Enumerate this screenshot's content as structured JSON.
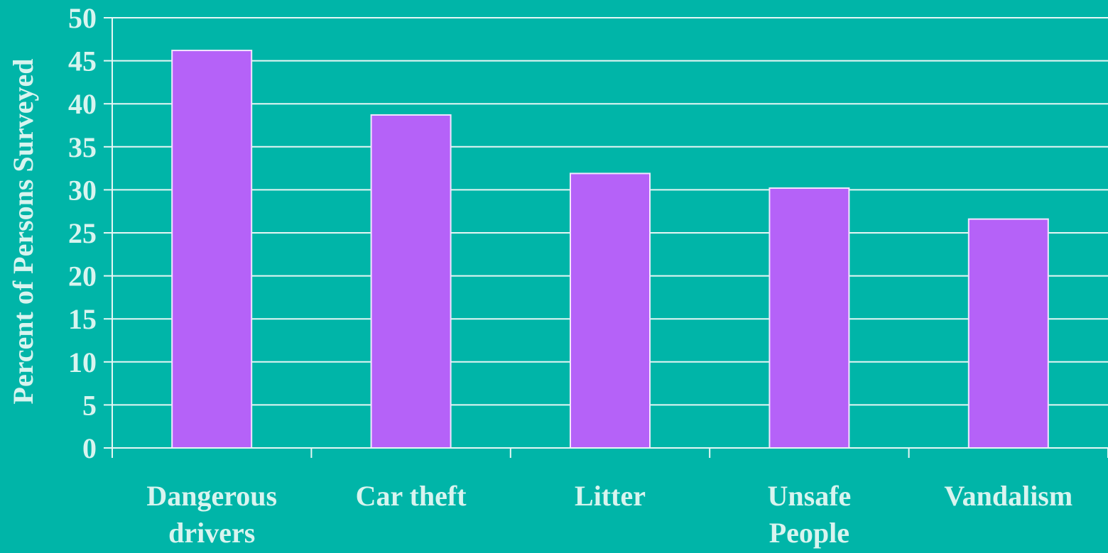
{
  "chart_data": {
    "type": "bar",
    "title": "",
    "xlabel": "",
    "ylabel": "Percent of Persons Surveyed",
    "categories": [
      [
        "Dangerous",
        "drivers"
      ],
      [
        "Car theft"
      ],
      [
        "Litter"
      ],
      [
        "Unsafe",
        "People"
      ],
      [
        "Vandalism"
      ]
    ],
    "values": [
      46.2,
      38.7,
      31.9,
      30.2,
      26.6
    ],
    "ylim": [
      0,
      50
    ],
    "yticks": [
      0,
      5,
      10,
      15,
      20,
      25,
      30,
      35,
      40,
      45,
      50
    ],
    "grid": true,
    "legend": "none"
  },
  "colors": {
    "background": "#00B5A8",
    "bar_fill": "#B562F8",
    "bar_stroke": "#F2E6FF",
    "grid": "#E6F7F5",
    "text": "#D8F4EF"
  }
}
